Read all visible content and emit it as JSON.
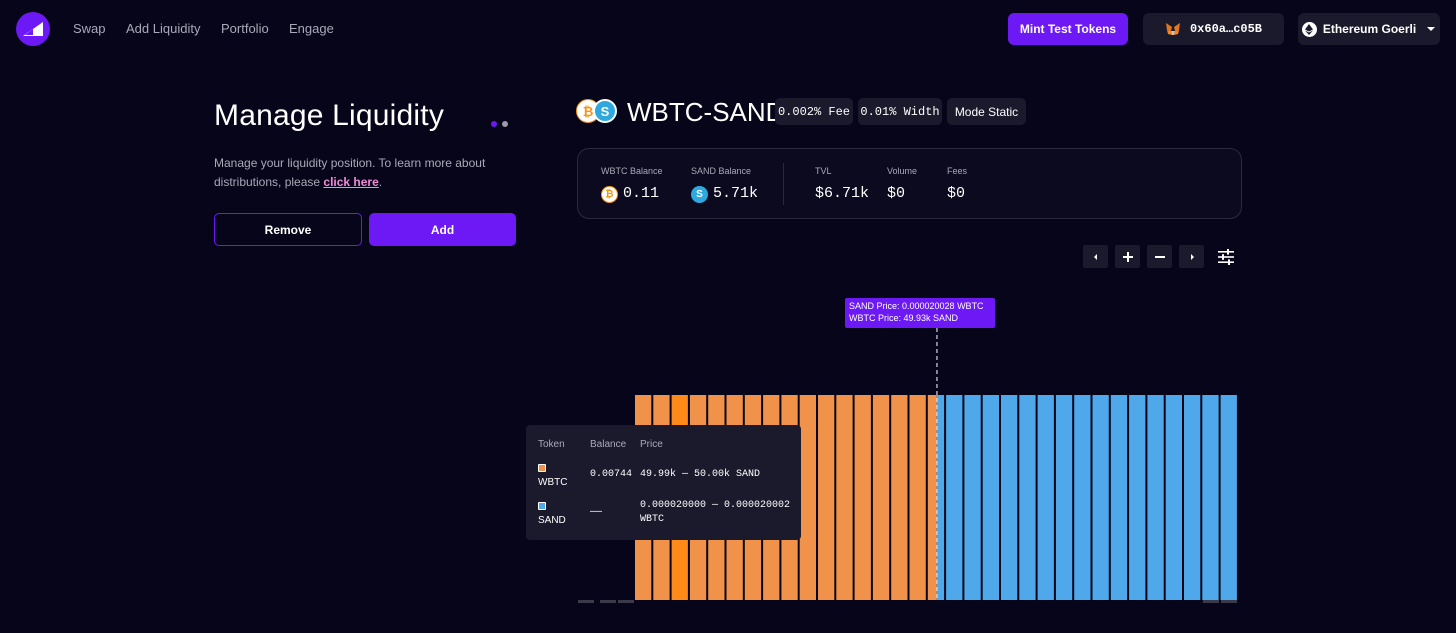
{
  "nav": {
    "links": [
      "Swap",
      "Add Liquidity",
      "Portfolio",
      "Engage"
    ],
    "mint_label": "Mint Test Tokens",
    "wallet_address": "0x60a…c05B",
    "network_label": "Ethereum Goerli"
  },
  "left_panel": {
    "title": "Manage Liquidity",
    "description_text": "Manage your liquidity position. To learn more about distributions, please ",
    "link_text": "click here",
    "description_end": ".",
    "remove_label": "Remove",
    "add_label": "Add"
  },
  "pair": {
    "title": "WBTC-SAND",
    "fee": "0.002% Fee",
    "width": "0.01% Width",
    "mode": "Mode Static"
  },
  "stats": {
    "wbtc_balance_label": "WBTC Balance",
    "wbtc_balance_value": "0.11",
    "sand_balance_label": "SAND Balance",
    "sand_balance_value": "5.71k",
    "tvl_label": "TVL",
    "tvl_value": "$6.71k",
    "volume_label": "Volume",
    "volume_value": "$0",
    "fees_label": "Fees",
    "fees_value": "$0"
  },
  "colors": {
    "accent": "#6c19f5",
    "wbtc_bar": "#f0924a",
    "wbtc_bar_highlight": "#ff8a1a",
    "sand_bar": "#4fa8ea",
    "background": "#070519"
  },
  "chart_data": {
    "type": "bar",
    "series": [
      {
        "name": "WBTC",
        "bins": 16,
        "highlighted_bin": 2
      },
      {
        "name": "SAND",
        "bins": 16
      }
    ],
    "active_bin_split": 0.55
  },
  "price_tooltip": {
    "line1": "SAND Price:  0.000020028 WBTC",
    "line2": "WBTC Price:  49.93k SAND"
  },
  "token_tooltip": {
    "headers": [
      "Token",
      "Balance",
      "Price"
    ],
    "rows": [
      {
        "token": "WBTC",
        "balance": "0.00744",
        "price": "49.99k — 50.00k SAND"
      },
      {
        "token": "SAND",
        "balance": "——",
        "price": "0.000020000 — 0.000020002\nWBTC"
      }
    ]
  }
}
